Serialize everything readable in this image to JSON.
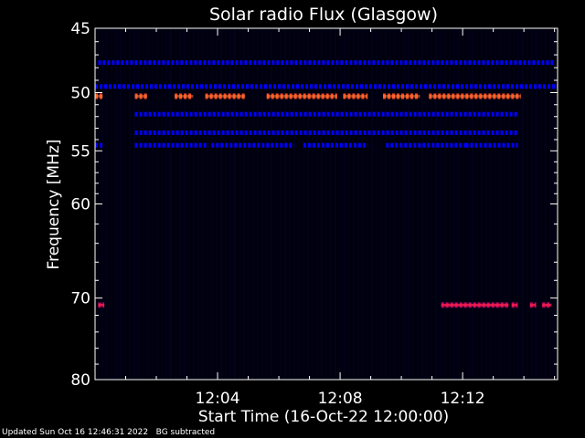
{
  "chart_data": {
    "type": "heatmap",
    "title": "Solar radio Flux (Glasgow)",
    "xlabel": "Start Time (16-Oct-22 12:00:00)",
    "ylabel": "Frequency [MHz]",
    "x_unit": "minutes after 12:00:00",
    "xlim": [
      0,
      15.1
    ],
    "x_ticks": [
      {
        "value": 4,
        "label": "12:04"
      },
      {
        "value": 8,
        "label": "12:08"
      },
      {
        "value": 12,
        "label": "12:12"
      }
    ],
    "ylim": [
      45,
      80
    ],
    "y_axis_reversed": true,
    "y_scale": "log",
    "y_ticks": [
      {
        "value": 45,
        "label": "45"
      },
      {
        "value": 50,
        "label": "50"
      },
      {
        "value": 55,
        "label": "55"
      },
      {
        "value": 60,
        "label": "60"
      },
      {
        "value": 70,
        "label": "70"
      },
      {
        "value": 80,
        "label": "80"
      }
    ],
    "colors": {
      "background": "#000000",
      "low": "#0000ff",
      "mid": "#b40064",
      "high": "#ff4a1e"
    },
    "emission_bands": [
      {
        "freq": 47.6,
        "level": "low",
        "segments": [
          [
            0.1,
            15.0
          ]
        ]
      },
      {
        "freq": 49.5,
        "level": "low",
        "segments": [
          [
            0.0,
            15.1
          ]
        ]
      },
      {
        "freq": 50.3,
        "level": "high",
        "segments": [
          [
            0.0,
            0.25
          ],
          [
            1.3,
            1.7
          ],
          [
            2.6,
            3.2
          ],
          [
            3.6,
            4.9
          ],
          [
            5.6,
            7.9
          ],
          [
            8.1,
            8.9
          ],
          [
            9.4,
            10.6
          ],
          [
            10.9,
            13.9
          ]
        ]
      },
      {
        "freq": 51.8,
        "level": "low",
        "segments": [
          [
            1.3,
            13.8
          ]
        ]
      },
      {
        "freq": 53.4,
        "level": "low",
        "segments": [
          [
            1.3,
            13.8
          ]
        ]
      },
      {
        "freq": 54.5,
        "level": "low",
        "segments": [
          [
            0.0,
            0.25
          ],
          [
            1.3,
            3.7
          ],
          [
            3.8,
            6.5
          ],
          [
            6.8,
            8.9
          ],
          [
            9.5,
            12.1
          ],
          [
            12.1,
            13.8
          ]
        ]
      },
      {
        "freq": 70.8,
        "level": "mid",
        "segments": [
          [
            0.1,
            0.3
          ],
          [
            11.3,
            13.5
          ],
          [
            13.6,
            13.8
          ],
          [
            14.2,
            14.4
          ],
          [
            14.6,
            14.9
          ]
        ]
      }
    ]
  },
  "footer": {
    "updated": "Updated Sun Oct 16 12:46:31 2022",
    "bg_note": "BG subtracted"
  }
}
